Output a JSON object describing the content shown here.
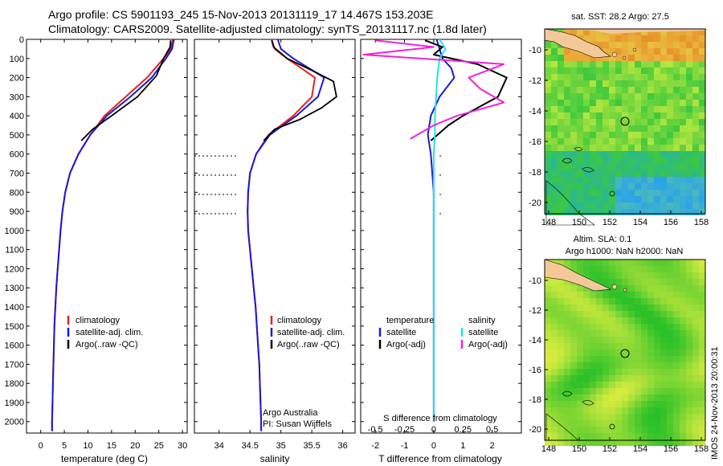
{
  "header": {
    "line1": "Argo profile: CS 5901193_245 15-Nov-2013 20131119_17 14.467S 153.203E",
    "line2": "Climatology: CARS2009. Satellite-adjusted climatology: synTS_20131117.nc (1.8d later)"
  },
  "depth_ticks": [
    0,
    100,
    200,
    300,
    400,
    500,
    600,
    700,
    800,
    900,
    1000,
    1100,
    1200,
    1300,
    1400,
    1500,
    1600,
    1700,
    1800,
    1900,
    2000
  ],
  "colors": {
    "clim": "#e8201e",
    "sat": "#1a1ad8",
    "argo": "#000000",
    "sal_sat": "#22e0ee",
    "sal_argo": "#ee22dd",
    "land": "#f5c89a",
    "deep": "#2aa4e8",
    "warm": "#e8902a",
    "green": "#3cc83c",
    "lime": "#b4e640"
  },
  "temperature": {
    "xlabel": "temperature (deg C)",
    "xticks": [
      "0",
      "5",
      "10",
      "15",
      "20",
      "25",
      "30"
    ],
    "legend": [
      "climatology",
      "satellite-adj. clim.",
      "Argo(..raw -QC)"
    ]
  },
  "salinity": {
    "xlabel": "salinity",
    "xticks": [
      "34",
      "34.5",
      "35",
      "35.5",
      "36"
    ],
    "legend": [
      "climatology",
      "satellite-adj. clim.",
      "Argo(..raw -QC)"
    ],
    "credit1": "Argo Australia",
    "credit2": "PI: Susan Wijffels"
  },
  "difference": {
    "top_label": "S difference from climatology",
    "top_ticks": [
      "-0.5",
      "-0.25",
      "0",
      "0.25",
      "0.5"
    ],
    "bottom_ticks": [
      "-2",
      "-1",
      "0",
      "1",
      "2"
    ],
    "xlabel": "T difference from climatology",
    "legend_t_title": "temperature",
    "legend_t1": "satellite",
    "legend_t2": "Argo(-adj)",
    "legend_s_title": "salinity",
    "legend_s1": "satellite",
    "legend_s2": "Argo(-adj)"
  },
  "sst_map": {
    "title": "sat. SST: 28.2 Argo: 27.5",
    "yticks": [
      "-10",
      "-12",
      "-14",
      "-16",
      "-18",
      "-20"
    ],
    "xticks": [
      "148",
      "150",
      "152",
      "154",
      "156",
      "158"
    ]
  },
  "sla_map": {
    "title1": "Altim. SLA: 0.1",
    "title2": "Argo h1000: NaN h2000: NaN",
    "yticks": [
      "-10",
      "-12",
      "-14",
      "-16",
      "-18",
      "-20"
    ],
    "xticks": [
      "148",
      "150",
      "152",
      "154",
      "156",
      "158"
    ]
  },
  "stamp": "IMOS 24-Nov-2013 20:00:31",
  "chart_data": [
    {
      "type": "line",
      "xlabel": "temperature (deg C)",
      "ylabel": "",
      "xlim": [
        -3,
        31
      ],
      "ylim": [
        2050,
        0
      ],
      "series": [
        {
          "name": "climatology",
          "x": [
            28.0,
            27.5,
            26.0,
            22.5,
            18.0,
            13.5,
            10.5,
            8.0,
            6.2,
            5.2,
            4.6,
            4.2,
            3.9,
            3.6,
            3.3,
            3.1,
            2.9,
            2.8,
            2.7,
            2.6,
            2.5,
            2.4,
            2.4
          ],
          "y": [
            0,
            50,
            100,
            200,
            300,
            400,
            500,
            600,
            700,
            800,
            900,
            1000,
            1100,
            1200,
            1300,
            1400,
            1500,
            1600,
            1700,
            1800,
            1900,
            2000,
            2050
          ]
        },
        {
          "name": "satellite-adj. clim.",
          "x": [
            28.2,
            27.8,
            26.5,
            23.5,
            19.0,
            14.0,
            10.5,
            8.0,
            6.2,
            5.2,
            4.6,
            4.2,
            3.9,
            3.6,
            3.3,
            3.1,
            2.9,
            2.8,
            2.7,
            2.6,
            2.5,
            2.4,
            2.4
          ],
          "y": [
            0,
            50,
            100,
            200,
            300,
            400,
            500,
            600,
            700,
            800,
            900,
            1000,
            1100,
            1200,
            1300,
            1400,
            1500,
            1600,
            1700,
            1800,
            1900,
            2000,
            2050
          ]
        },
        {
          "name": "Argo(..raw -QC)",
          "x": [
            27.5,
            27.4,
            26.0,
            24.5,
            20.5,
            15.0,
            11.0,
            8.6
          ],
          "y": [
            5,
            40,
            100,
            190,
            300,
            400,
            470,
            530
          ]
        }
      ]
    },
    {
      "type": "line",
      "xlabel": "salinity",
      "ylabel": "",
      "xlim": [
        33.6,
        36.2
      ],
      "ylim": [
        2050,
        0
      ],
      "series": [
        {
          "name": "climatology",
          "x": [
            34.85,
            34.9,
            35.1,
            35.55,
            35.5,
            35.2,
            34.8,
            34.6,
            34.5,
            34.47,
            34.46,
            34.47,
            34.5,
            34.53,
            34.56,
            34.59,
            34.61,
            34.63,
            34.65,
            34.66,
            34.67,
            34.68,
            34.68
          ],
          "y": [
            0,
            50,
            100,
            200,
            300,
            400,
            500,
            600,
            700,
            800,
            900,
            1000,
            1100,
            1200,
            1300,
            1400,
            1500,
            1600,
            1700,
            1800,
            1900,
            2000,
            2050
          ]
        },
        {
          "name": "satellite-adj. clim.",
          "x": [
            34.95,
            35.0,
            35.2,
            35.7,
            35.6,
            35.25,
            34.82,
            34.6,
            34.5,
            34.47,
            34.46,
            34.47,
            34.5,
            34.53,
            34.56,
            34.59,
            34.61,
            34.63,
            34.65,
            34.66,
            34.67,
            34.68,
            34.68
          ],
          "y": [
            0,
            50,
            100,
            200,
            300,
            400,
            500,
            600,
            700,
            800,
            900,
            1000,
            1100,
            1200,
            1300,
            1400,
            1500,
            1600,
            1700,
            1800,
            1900,
            2000,
            2050
          ]
        },
        {
          "name": "Argo(..raw -QC)",
          "x": [
            34.85,
            34.88,
            35.1,
            35.55,
            35.85,
            35.9,
            35.65,
            35.3,
            34.9,
            34.72
          ],
          "y": [
            5,
            40,
            100,
            170,
            220,
            300,
            360,
            420,
            470,
            530
          ]
        }
      ]
    },
    {
      "type": "line",
      "xlabel": "T difference from climatology",
      "ylabel": "",
      "xlim": [
        -2.5,
        3.0
      ],
      "ylim": [
        2050,
        0
      ],
      "series": [
        {
          "name": "temperature satellite",
          "x": [
            0.1,
            0.2,
            0.3,
            0.6,
            0.7,
            0.2,
            -0.1,
            -0.2,
            -0.1,
            -0.05,
            0,
            0,
            0,
            0,
            0,
            0,
            0,
            0,
            0,
            0,
            0
          ],
          "y": [
            0,
            50,
            100,
            150,
            200,
            300,
            400,
            500,
            600,
            700,
            800,
            900,
            1000,
            1100,
            1200,
            1300,
            1400,
            1500,
            1600,
            1700,
            2000
          ]
        },
        {
          "name": "temperature Argo(-adj)",
          "x": [
            -0.3,
            0.3,
            0.0,
            1.5,
            2.5,
            2.2,
            1.0,
            0.5,
            -0.1
          ],
          "y": [
            5,
            40,
            80,
            130,
            200,
            300,
            400,
            450,
            530
          ]
        },
        {
          "name": "salinity satellite",
          "x": [
            0.05,
            0.1,
            0.05,
            0.04,
            0.03,
            0.02,
            0.01,
            0.01,
            0,
            0,
            0,
            0,
            0,
            0,
            0,
            0,
            0,
            0,
            0,
            0,
            0
          ],
          "y": [
            0,
            50,
            100,
            150,
            200,
            300,
            400,
            500,
            600,
            700,
            800,
            900,
            1000,
            1100,
            1200,
            1300,
            1400,
            1500,
            1600,
            1700,
            2000
          ]
        },
        {
          "name": "salinity Argo(-adj)",
          "x": [
            -0.5,
            0.0,
            -0.6,
            0.6,
            0.3,
            0.4,
            0.6,
            0.2,
            0.0,
            -0.2
          ],
          "y": [
            5,
            40,
            80,
            130,
            200,
            260,
            330,
            400,
            450,
            520
          ]
        }
      ]
    }
  ]
}
